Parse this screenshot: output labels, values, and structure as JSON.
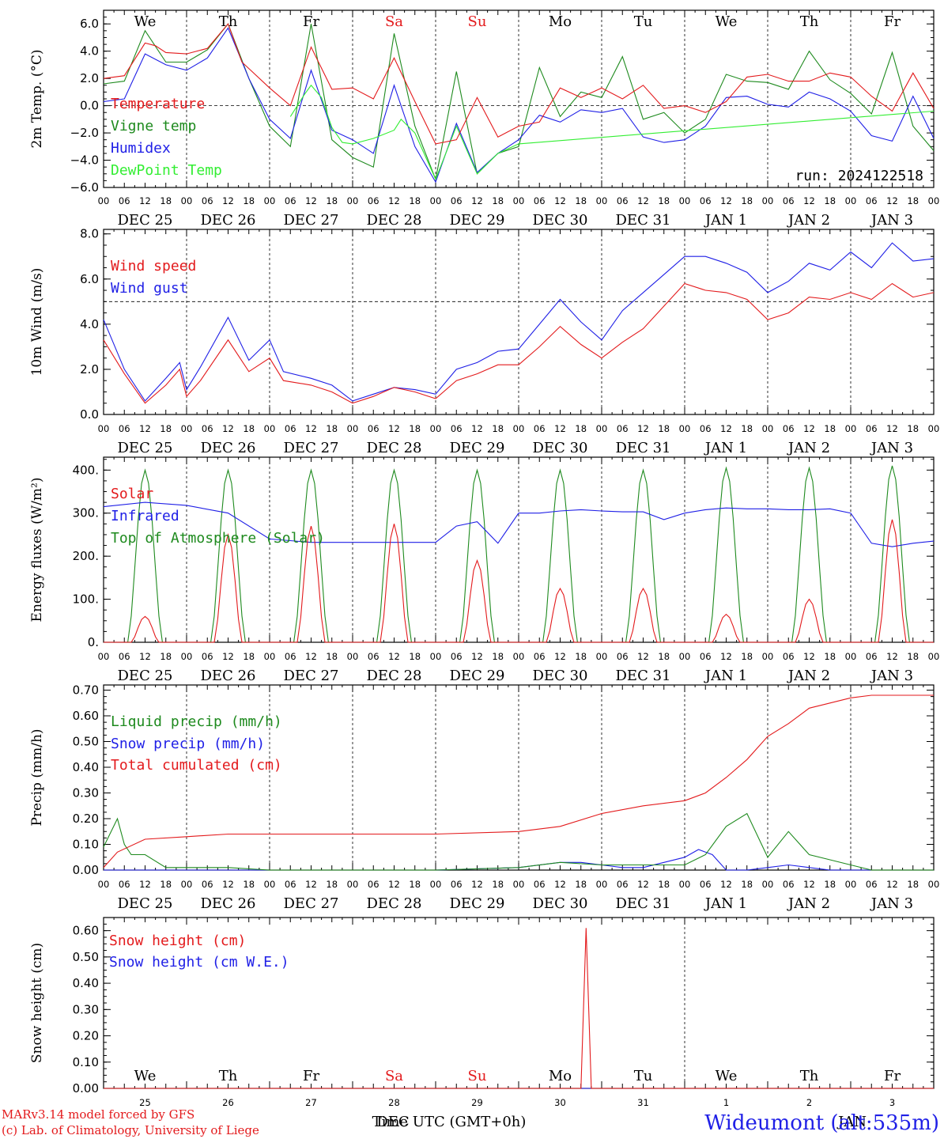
{
  "colors": {
    "red": "#e31a1c",
    "green": "#1e8a1e",
    "blue": "#1f1fe6",
    "lightgreen": "#33ee33",
    "black": "#000000"
  },
  "days": {
    "weekdays": [
      "We",
      "Th",
      "Fr",
      "Sa",
      "Su",
      "Mo",
      "Tu",
      "We",
      "Th",
      "Fr"
    ],
    "weekday_colors": [
      "black",
      "black",
      "black",
      "red",
      "red",
      "black",
      "black",
      "black",
      "black",
      "black"
    ],
    "dates": [
      "DEC 25",
      "DEC 26",
      "DEC 27",
      "DEC 28",
      "DEC 29",
      "DEC 30",
      "DEC 31",
      "JAN  1",
      "JAN  2",
      "JAN  3"
    ],
    "day_numbers": [
      "25",
      "26",
      "27",
      "28",
      "29",
      "30",
      "31",
      "1",
      "2",
      "3"
    ],
    "hour_labels": [
      "00",
      "06",
      "12",
      "18"
    ],
    "end_hour_label": "00"
  },
  "footer": {
    "model_line": "MARv3.14 model forced by GFS",
    "credit_line": "(c) Lab. of Climatology, University of Liege",
    "xlabel": "Time UTC (GMT+0h)",
    "month_label": "DEC",
    "month_label_2": "JAN",
    "station": "Wideumont (alt:535m)"
  },
  "chart_data": [
    {
      "type": "line",
      "ylabel": "2m Temp. (°C)",
      "ylim": [
        -6,
        7
      ],
      "yticks": [
        "6.0",
        "4.0",
        "2.0",
        "0.0",
        "−2.0",
        "−4.0",
        "−6.0"
      ],
      "ytick_values": [
        6,
        4,
        2,
        0,
        -2,
        -4,
        -6
      ],
      "ref_line": 0,
      "annotation": "run: 2024122518",
      "x_unit": "hours since DEC 25 00 UTC",
      "series": [
        {
          "name": "Temperature",
          "color": "red",
          "x": [
            0,
            6,
            12,
            15,
            18,
            24,
            30,
            36,
            40,
            48,
            54,
            60,
            66,
            72,
            78,
            84,
            90,
            96,
            102,
            108,
            114,
            120,
            126,
            132,
            138,
            144,
            150,
            156,
            162,
            168,
            174,
            180,
            186,
            192,
            198,
            204,
            210,
            216,
            222,
            228,
            234,
            240
          ],
          "y": [
            2.0,
            2.2,
            4.6,
            4.4,
            3.9,
            3.8,
            4.2,
            6.0,
            3.2,
            1.3,
            0.0,
            4.3,
            1.2,
            1.3,
            0.5,
            3.5,
            0.3,
            -2.8,
            -2.5,
            0.6,
            -2.3,
            -1.5,
            -1.2,
            1.3,
            0.6,
            1.3,
            0.5,
            1.5,
            -0.2,
            0.0,
            -0.5,
            0.3,
            2.1,
            2.3,
            1.8,
            1.8,
            2.4,
            2.1,
            0.7,
            -0.4,
            2.4,
            -0.2
          ]
        },
        {
          "name": "Vigne temp",
          "color": "green",
          "x": [
            0,
            6,
            12,
            18,
            24,
            30,
            36,
            42,
            48,
            54,
            60,
            66,
            72,
            78,
            84,
            90,
            96,
            102,
            108,
            114,
            120,
            126,
            132,
            138,
            144,
            150,
            156,
            162,
            168,
            174,
            180,
            186,
            192,
            198,
            204,
            210,
            216,
            222,
            228,
            234,
            240
          ],
          "y": [
            1.6,
            1.8,
            5.5,
            3.2,
            3.2,
            4.1,
            6.0,
            2.0,
            -1.5,
            -3.0,
            6.0,
            -2.5,
            -3.8,
            -4.5,
            5.3,
            -1.5,
            -5.4,
            2.5,
            -5.0,
            -3.5,
            -3.0,
            2.8,
            -0.8,
            1.0,
            0.6,
            3.6,
            -1.0,
            -0.5,
            -2.0,
            -1.0,
            2.3,
            1.8,
            1.7,
            1.2,
            4.0,
            1.9,
            0.9,
            -0.6,
            3.9,
            -1.5,
            -3.3
          ]
        },
        {
          "name": "Humidex",
          "color": "blue",
          "x": [
            0,
            6,
            12,
            18,
            24,
            30,
            36,
            42,
            48,
            54,
            60,
            66,
            72,
            78,
            84,
            90,
            96,
            102,
            108,
            114,
            120,
            126,
            132,
            138,
            144,
            150,
            156,
            162,
            168,
            174,
            180,
            186,
            192,
            198,
            204,
            210,
            216,
            222,
            228,
            234,
            240
          ],
          "y": [
            0.3,
            0.5,
            3.8,
            3.0,
            2.6,
            3.5,
            5.7,
            2.0,
            -1.0,
            -2.4,
            2.6,
            -1.8,
            -2.5,
            -3.5,
            1.5,
            -3.0,
            -5.6,
            -1.3,
            -4.9,
            -3.5,
            -2.5,
            -0.7,
            -1.2,
            -0.3,
            -0.5,
            -0.2,
            -2.3,
            -2.7,
            -2.5,
            -1.5,
            0.6,
            0.7,
            0.1,
            -0.1,
            1.0,
            0.5,
            -0.4,
            -2.2,
            -2.6,
            0.7,
            -2.4
          ]
        },
        {
          "name": "DewPoint Temp",
          "color": "lightgreen",
          "x": [
            54,
            58,
            60,
            63,
            66,
            69,
            72,
            78,
            84,
            86,
            90,
            96,
            102,
            108,
            114,
            120,
            240
          ],
          "y": [
            -0.8,
            0.8,
            1.5,
            0.6,
            -1.6,
            -2.7,
            -2.8,
            -2.4,
            -1.8,
            -1.0,
            -2.0,
            -5.4,
            -1.5,
            -5.0,
            -3.5,
            -2.8,
            -0.4
          ]
        }
      ]
    },
    {
      "type": "line",
      "ylabel": "10m Wind (m/s)",
      "ylim": [
        0,
        8.2
      ],
      "yticks": [
        "8.0",
        "6.0",
        "4.0",
        "2.0",
        "0.0"
      ],
      "ytick_values": [
        8,
        6,
        4,
        2,
        0
      ],
      "ref_line": 5,
      "series": [
        {
          "name": "Wind speed",
          "color": "red",
          "x": [
            0,
            6,
            12,
            18,
            22,
            24,
            28,
            36,
            42,
            48,
            52,
            60,
            66,
            72,
            78,
            84,
            90,
            96,
            102,
            108,
            114,
            120,
            126,
            132,
            138,
            144,
            150,
            156,
            162,
            168,
            174,
            180,
            186,
            192,
            198,
            204,
            210,
            216,
            222,
            228,
            234,
            240
          ],
          "y": [
            3.3,
            1.8,
            0.5,
            1.3,
            2.0,
            0.8,
            1.5,
            3.3,
            1.9,
            2.5,
            1.5,
            1.3,
            1.0,
            0.5,
            0.8,
            1.2,
            1.0,
            0.7,
            1.5,
            1.8,
            2.2,
            2.2,
            3.0,
            3.9,
            3.1,
            2.5,
            3.2,
            3.8,
            4.8,
            5.8,
            5.5,
            5.4,
            5.1,
            4.2,
            4.5,
            5.2,
            5.1,
            5.4,
            5.1,
            5.8,
            5.2,
            5.4
          ]
        },
        {
          "name": "Wind gust",
          "color": "blue",
          "x": [
            0,
            6,
            12,
            18,
            22,
            24,
            28,
            36,
            42,
            48,
            52,
            60,
            66,
            72,
            78,
            84,
            90,
            96,
            102,
            108,
            114,
            120,
            126,
            132,
            138,
            144,
            150,
            156,
            162,
            168,
            174,
            180,
            186,
            192,
            198,
            204,
            210,
            216,
            222,
            228,
            234,
            240
          ],
          "y": [
            4.2,
            2.0,
            0.6,
            1.6,
            2.3,
            1.1,
            2.1,
            4.3,
            2.4,
            3.3,
            1.9,
            1.6,
            1.3,
            0.6,
            0.9,
            1.2,
            1.1,
            0.9,
            2.0,
            2.3,
            2.8,
            2.9,
            4.0,
            5.1,
            4.1,
            3.3,
            4.6,
            5.4,
            6.2,
            7.0,
            7.0,
            6.7,
            6.3,
            5.4,
            5.9,
            6.7,
            6.4,
            7.2,
            6.5,
            7.6,
            6.8,
            6.9
          ]
        }
      ]
    },
    {
      "type": "line",
      "ylabel": "Energy fluxes (W/m²)",
      "ylim": [
        0,
        430
      ],
      "yticks": [
        "400.",
        "300.",
        "200.",
        "100.",
        "0."
      ],
      "ytick_values": [
        400,
        300,
        200,
        100,
        0
      ],
      "series": [
        {
          "name": "Solar",
          "color": "red",
          "day_peaks": [
            60,
            250,
            270,
            275,
            190,
            125,
            125,
            65,
            100,
            285
          ]
        },
        {
          "name": "Infrared",
          "color": "blue",
          "x": [
            0,
            12,
            24,
            36,
            48,
            60,
            72,
            84,
            96,
            102,
            108,
            114,
            120,
            126,
            132,
            138,
            144,
            150,
            156,
            162,
            168,
            174,
            180,
            186,
            192,
            198,
            204,
            210,
            216,
            222,
            228,
            234,
            240
          ],
          "y": [
            315,
            325,
            318,
            300,
            240,
            232,
            232,
            232,
            232,
            270,
            280,
            230,
            300,
            300,
            305,
            308,
            305,
            303,
            303,
            285,
            300,
            308,
            312,
            310,
            310,
            308,
            308,
            310,
            300,
            230,
            222,
            230,
            235
          ]
        },
        {
          "name": "Top of Atmosphere (Solar)",
          "color": "green",
          "day_peaks": [
            400,
            400,
            400,
            400,
            400,
            400,
            400,
            405,
            405,
            410
          ]
        }
      ]
    },
    {
      "type": "line",
      "ylabel": "Precip (mm/h)",
      "ylim": [
        0,
        0.72
      ],
      "yticks": [
        "0.70",
        "0.60",
        "0.50",
        "0.40",
        "0.30",
        "0.20",
        "0.10",
        "0.00"
      ],
      "ytick_values": [
        0.7,
        0.6,
        0.5,
        0.4,
        0.3,
        0.2,
        0.1,
        0.0
      ],
      "series": [
        {
          "name": "Liquid precip (mm/h)",
          "color": "green",
          "x": [
            0,
            4,
            6,
            8,
            12,
            18,
            24,
            36,
            48,
            96,
            120,
            132,
            144,
            156,
            168,
            174,
            180,
            186,
            192,
            198,
            204,
            210,
            216,
            222,
            228,
            240
          ],
          "y": [
            0.09,
            0.2,
            0.1,
            0.06,
            0.06,
            0.01,
            0.01,
            0.01,
            0.0,
            0.0,
            0.01,
            0.03,
            0.02,
            0.02,
            0.02,
            0.06,
            0.17,
            0.22,
            0.05,
            0.15,
            0.06,
            0.04,
            0.02,
            0.0,
            0.0,
            0.0
          ]
        },
        {
          "name": "Snow precip (mm/h)",
          "color": "blue",
          "x": [
            0,
            96,
            120,
            126,
            132,
            138,
            144,
            150,
            156,
            162,
            168,
            172,
            176,
            180,
            186,
            192,
            198,
            204,
            210,
            240
          ],
          "y": [
            0.0,
            0.0,
            0.01,
            0.02,
            0.03,
            0.03,
            0.02,
            0.01,
            0.01,
            0.03,
            0.05,
            0.08,
            0.06,
            0.0,
            0.0,
            0.01,
            0.02,
            0.01,
            0.0,
            0.0
          ]
        },
        {
          "name": "Total cumulated (cm)",
          "color": "red",
          "x": [
            0,
            4,
            12,
            24,
            36,
            48,
            72,
            96,
            120,
            132,
            144,
            156,
            168,
            174,
            180,
            186,
            192,
            198,
            204,
            210,
            216,
            222,
            228,
            240
          ],
          "y": [
            0.01,
            0.07,
            0.12,
            0.13,
            0.14,
            0.14,
            0.14,
            0.14,
            0.15,
            0.17,
            0.22,
            0.25,
            0.27,
            0.3,
            0.36,
            0.43,
            0.52,
            0.57,
            0.63,
            0.65,
            0.67,
            0.68,
            0.68,
            0.68
          ]
        }
      ]
    },
    {
      "type": "line",
      "ylabel": "Snow height (cm)",
      "ylim": [
        0,
        0.65
      ],
      "yticks": [
        "0.60",
        "0.50",
        "0.40",
        "0.30",
        "0.20",
        "0.10",
        "0.00"
      ],
      "ytick_values": [
        0.6,
        0.5,
        0.4,
        0.3,
        0.2,
        0.1,
        0.0
      ],
      "series": [
        {
          "name": "Snow height (cm)",
          "color": "red",
          "x": [
            0,
            138,
            139.5,
            141,
            240
          ],
          "y": [
            0,
            0,
            0.61,
            0,
            0
          ]
        },
        {
          "name": "Snow height (cm W.E.)",
          "color": "blue",
          "x": [
            0,
            240
          ],
          "y": [
            0,
            0
          ]
        }
      ]
    }
  ]
}
